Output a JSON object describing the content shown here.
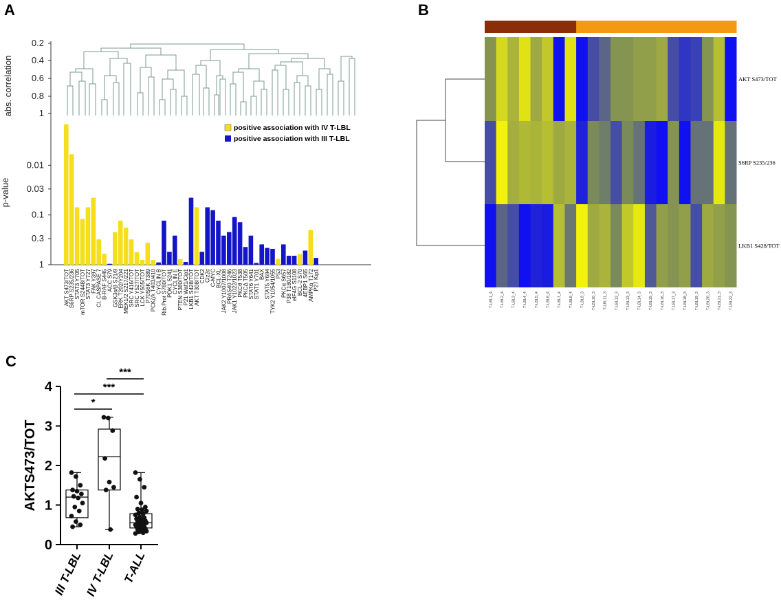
{
  "panels": {
    "a": "A",
    "b": "B",
    "c": "C"
  },
  "colors": {
    "yellow": "#f5de1c",
    "blue": "#1414c8",
    "brown": "#8b2d0a",
    "orange": "#f39a12"
  },
  "chart_data": [
    {
      "id": "A-dendrogram",
      "type": "dendrogram",
      "ylabel": "abs. correlation",
      "yticks": [
        "0.2",
        "0.4",
        "0.6",
        "0.8",
        "1"
      ],
      "ylim": [
        0.2,
        1
      ]
    },
    {
      "id": "A-bars",
      "type": "bar",
      "ylabel": "p-value",
      "yscale": "log-reversed",
      "yticks": [
        "0.01",
        "0.03",
        "0.1",
        "0.3",
        "1"
      ],
      "ylim": [
        1,
        0.001
      ],
      "legend": [
        {
          "label": "positive association with IV T-LBL",
          "color": "yellow"
        },
        {
          "label": "positive association with III T-LBL",
          "color": "blue"
        }
      ],
      "legend_position": "top-right",
      "categories": [
        "AKT S473/TOT",
        "S6RP S235/236",
        "STAT3 Y705",
        "mTOR S2448/TOT",
        "STAT3 Y727",
        "FAK Y397",
        "Cl. CASPASE 7",
        "B-RAF S445",
        "ACC S79",
        "GSK3α/β S21/9",
        "ERK T202/Y204",
        "MEK1/2 S217/221",
        "SRC Y416/TOT",
        "SRC Y527/TOT",
        "LCK Y505/TOT",
        "P70S6K T389",
        "PCKζ/λ T403/410",
        "CYCLIN B",
        "Rib.Prot S780/TOT",
        "PDK1 S241",
        "CYCLIN E",
        "PTEN S380/TOT",
        "P21 Waf1/Cip1",
        "LKB1 S428/TOT",
        "AKT T308/TOT",
        "CDK2",
        "Clz2c",
        "C-MYC",
        "BCL-XL",
        "JAK2 Y1007/1008",
        "PRAS40 T246",
        "JAK1 Y1022/1023",
        "PKCθ T538",
        "PKCΔ T505",
        "STAT6 Y641",
        "STAT1 Y701",
        "BAX",
        "STAT5 Y694",
        "TYK2 Y1054/1055",
        "P53",
        "PKCα S657",
        "P38 T180/182",
        "eIF4G S1108",
        "BCL-2 S70",
        "4EBP1 S65",
        "AMPKα T172",
        "P27 Kip1"
      ],
      "values": [
        0.0015,
        0.006,
        0.07,
        0.12,
        0.07,
        0.045,
        0.31,
        0.6,
        0.96,
        0.22,
        0.13,
        0.18,
        0.31,
        0.56,
        0.8,
        0.36,
        0.8,
        0.9,
        0.13,
        0.55,
        0.26,
        0.77,
        0.88,
        0.045,
        0.07,
        0.55,
        0.07,
        0.08,
        0.13,
        0.26,
        0.22,
        0.11,
        0.14,
        0.44,
        0.26,
        0.92,
        0.39,
        0.46,
        0.48,
        0.76,
        0.39,
        0.66,
        0.66,
        0.61,
        0.52,
        0.2,
        0.73
      ],
      "groups": [
        "yellow",
        "yellow",
        "yellow",
        "yellow",
        "yellow",
        "yellow",
        "yellow",
        "yellow",
        "blue",
        "yellow",
        "yellow",
        "yellow",
        "yellow",
        "yellow",
        "yellow",
        "yellow",
        "yellow",
        "blue",
        "blue",
        "blue",
        "blue",
        "yellow",
        "blue",
        "blue",
        "yellow",
        "blue",
        "blue",
        "blue",
        "blue",
        "blue",
        "blue",
        "blue",
        "blue",
        "blue",
        "blue",
        "blue",
        "blue",
        "blue",
        "blue",
        "yellow",
        "blue",
        "blue",
        "blue",
        "yellow",
        "blue",
        "yellow",
        "blue"
      ]
    },
    {
      "id": "B-heatmap",
      "type": "heatmap",
      "rows": [
        "AKT S473/TOT",
        "S6RP S235/236",
        "LKB1 S428/TOT"
      ],
      "columns": [
        "T-LBL1_4",
        "T-LBL2_4",
        "T-LBL3_4",
        "T-LBL4_4",
        "T-LBL5_4",
        "T-LBL6_4",
        "T-LBL7_4",
        "T-LBL8_4",
        "T-LBL9_3",
        "T-LBL10_3",
        "T-LBL11_3",
        "T-LBL12_3",
        "T-LBL13_3",
        "T-LBL14_3",
        "T-LBL15_3",
        "T-LBL16_3",
        "T-LBL17_3",
        "T-LBL18_3",
        "T-LBL19_3",
        "T-LBL20_3",
        "T-LBL21_3",
        "T-LBL22_3"
      ],
      "column_groups": [
        "brown",
        "brown",
        "brown",
        "brown",
        "brown",
        "brown",
        "brown",
        "brown",
        "orange",
        "orange",
        "orange",
        "orange",
        "orange",
        "orange",
        "orange",
        "orange",
        "orange",
        "orange",
        "orange",
        "orange",
        "orange",
        "orange"
      ],
      "values": [
        [
          0.1,
          0.75,
          0.4,
          0.85,
          0.3,
          0.6,
          -1.0,
          0.85,
          -1.0,
          -0.5,
          -0.3,
          0.1,
          0.1,
          0.2,
          0.2,
          0.3,
          -0.5,
          -0.7,
          -0.6,
          0.1,
          0.5,
          -1.0
        ],
        [
          -0.5,
          1.0,
          0.35,
          0.45,
          0.4,
          0.5,
          0.3,
          0.4,
          -0.85,
          0.0,
          -0.1,
          -0.5,
          0.0,
          -0.2,
          -0.9,
          -1.0,
          0.1,
          -1.0,
          -0.2,
          -0.2,
          0.9,
          -0.2
        ],
        [
          -1.0,
          -0.3,
          -0.5,
          -1.0,
          -0.85,
          -0.9,
          0.5,
          -0.15,
          1.0,
          0.3,
          0.4,
          0.0,
          0.6,
          0.9,
          -0.4,
          0.2,
          0.1,
          0.2,
          -0.5,
          0.3,
          0.2,
          0.1
        ]
      ]
    },
    {
      "id": "C-boxplot",
      "type": "box",
      "ylabel": "AKTS473/TOT",
      "ylim": [
        0,
        4
      ],
      "yticks": [
        "0",
        "1",
        "2",
        "3",
        "4"
      ],
      "categories": [
        "III T-LBL",
        "IV T-LBL",
        "T-ALL"
      ],
      "boxes": [
        {
          "min": 0.45,
          "q1": 0.68,
          "median": 1.2,
          "q3": 1.38,
          "max": 1.82
        },
        {
          "min": 0.38,
          "q1": 1.38,
          "median": 2.22,
          "q3": 2.92,
          "max": 3.22
        },
        {
          "min": 0.28,
          "q1": 0.42,
          "median": 0.55,
          "q3": 0.78,
          "max": 1.82
        }
      ],
      "points": [
        [
          1.82,
          1.72,
          1.5,
          1.38,
          1.35,
          1.28,
          1.22,
          1.18,
          1.05,
          0.95,
          0.85,
          0.72,
          0.58,
          0.5,
          0.45
        ],
        [
          3.22,
          3.2,
          2.88,
          2.18,
          1.58,
          1.45,
          1.38,
          0.38
        ],
        [
          1.82,
          1.65,
          1.45,
          1.2,
          1.05,
          0.95,
          0.9,
          0.88,
          0.85,
          0.8,
          0.78,
          0.75,
          0.7,
          0.68,
          0.65,
          0.62,
          0.6,
          0.58,
          0.55,
          0.55,
          0.52,
          0.5,
          0.5,
          0.48,
          0.45,
          0.45,
          0.42,
          0.4,
          0.38,
          0.36,
          0.34,
          0.32,
          0.3,
          0.28
        ]
      ],
      "significance": [
        {
          "pair": [
            1,
            2
          ],
          "label": "***"
        },
        {
          "pair": [
            0,
            2
          ],
          "label": "***"
        },
        {
          "pair": [
            0,
            1
          ],
          "label": "*"
        }
      ]
    }
  ]
}
